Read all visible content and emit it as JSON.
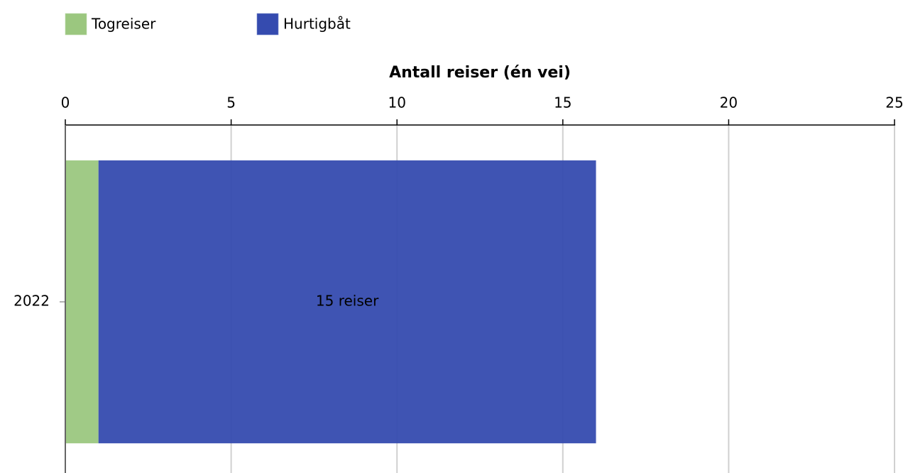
{
  "chart_data": {
    "type": "hbar_stacked",
    "xlabel": "Antall reiser (én vei)",
    "categories": [
      "2022"
    ],
    "series": [
      {
        "name": "Togreiser",
        "color": "#9bc77f",
        "values": [
          1
        ]
      },
      {
        "name": "Hurtigbåt",
        "color": "#354baf",
        "values": [
          15
        ],
        "value_labels": [
          "15 reiser"
        ]
      }
    ],
    "xlim": [
      0,
      25
    ],
    "xticks": [
      0,
      5,
      10,
      15,
      20,
      25
    ],
    "grid": true,
    "legend": "top-left"
  }
}
